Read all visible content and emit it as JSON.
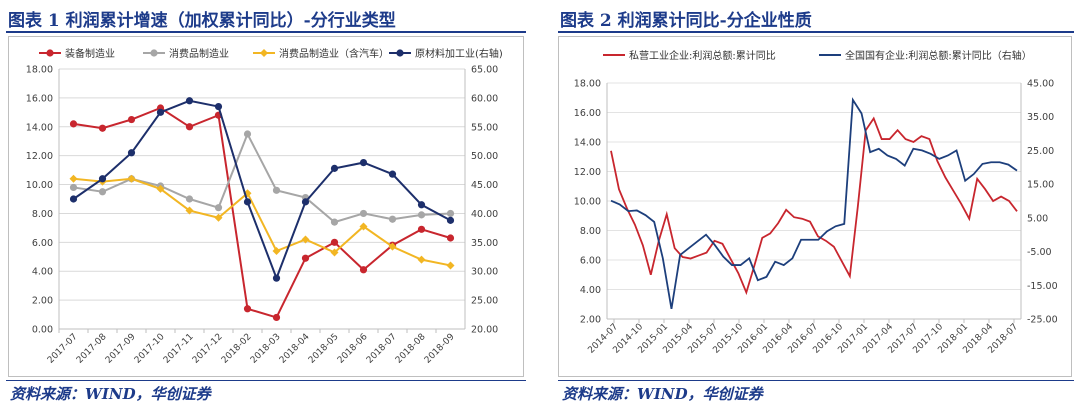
{
  "charts": [
    {
      "title": "图表 1   利润累计增速（加权累计同比）-分行业类型",
      "source": "资料来源：WIND，华创证券",
      "chart_data": {
        "type": "line",
        "categories": [
          "2017-07",
          "2017-08",
          "2017-09",
          "2017-10",
          "2017-11",
          "2017-12",
          "2018-02",
          "2018-03",
          "2018-04",
          "2018-05",
          "2018-06",
          "2018-07",
          "2018-08",
          "2018-09"
        ],
        "left_axis": {
          "ylim": [
            0,
            18
          ],
          "ticks": [
            "0.00",
            "2.00",
            "4.00",
            "6.00",
            "8.00",
            "10.00",
            "12.00",
            "14.00",
            "16.00",
            "18.00"
          ]
        },
        "right_axis": {
          "ylim": [
            20,
            65
          ],
          "ticks": [
            "20.00",
            "25.00",
            "30.00",
            "35.00",
            "40.00",
            "45.00",
            "50.00",
            "55.00",
            "60.00",
            "65.00"
          ]
        },
        "legend_position": "top",
        "series": [
          {
            "name": "装备制造业",
            "axis": "left",
            "color": "#c8262e",
            "marker": "circle",
            "values": [
              14.2,
              13.9,
              14.5,
              15.3,
              14.0,
              14.8,
              1.4,
              0.8,
              4.9,
              6.0,
              4.1,
              5.8,
              6.9,
              6.3
            ]
          },
          {
            "name": "消费品制造业",
            "axis": "left",
            "color": "#a6a6a6",
            "marker": "circle",
            "values": [
              9.8,
              9.5,
              10.4,
              9.9,
              9.0,
              8.4,
              13.5,
              9.6,
              9.1,
              7.4,
              8.0,
              7.6,
              7.9,
              8.0
            ]
          },
          {
            "name": "消费品制造业（含汽车）",
            "axis": "left",
            "color": "#f2b623",
            "marker": "diamond",
            "values": [
              10.4,
              10.2,
              10.4,
              9.7,
              8.2,
              7.7,
              9.4,
              5.4,
              6.2,
              5.3,
              7.1,
              5.7,
              4.8,
              4.4
            ]
          },
          {
            "name": "原材料加工业(右轴)",
            "axis": "right",
            "color": "#1d2f6b",
            "marker": "circle",
            "values": [
              42.5,
              46.0,
              50.5,
              57.5,
              59.5,
              58.5,
              42.0,
              28.8,
              42.0,
              47.8,
              48.8,
              46.8,
              41.5,
              38.8
            ]
          }
        ]
      }
    },
    {
      "title": "图表 2   利润累计同比-分企业性质",
      "source": "资料来源：WIND，华创证券",
      "chart_data": {
        "type": "line",
        "x_tick_labels": [
          "2014-07",
          "2014-10",
          "2015-01",
          "2015-04",
          "2015-07",
          "2015-10",
          "2016-01",
          "2016-04",
          "2016-07",
          "2016-10",
          "2017-01",
          "2017-04",
          "2017-07",
          "2017-10",
          "2018-01",
          "2018-04",
          "2018-07"
        ],
        "left_axis": {
          "ylim": [
            2,
            18
          ],
          "ticks": [
            "2.00",
            "4.00",
            "6.00",
            "8.00",
            "10.00",
            "12.00",
            "14.00",
            "16.00",
            "18.00"
          ]
        },
        "right_axis": {
          "ylim": [
            -25,
            45
          ],
          "ticks": [
            "-25.00",
            "-15.00",
            "-5.00",
            "5.00",
            "15.00",
            "25.00",
            "35.00",
            "45.00"
          ]
        },
        "legend_position": "top",
        "series": [
          {
            "name": "私营工业企业:利润总额:累计同比",
            "axis": "left",
            "color": "#c8262e",
            "values": [
              13.4,
              10.8,
              9.5,
              8.4,
              7.0,
              5.0,
              7.3,
              9.1,
              6.8,
              6.2,
              6.1,
              6.3,
              6.5,
              7.3,
              7.1,
              6.1,
              5.1,
              3.8,
              5.6,
              7.5,
              7.8,
              8.5,
              9.4,
              8.9,
              8.8,
              8.6,
              7.6,
              7.3,
              6.9,
              5.9,
              4.9,
              9.6,
              14.8,
              15.6,
              14.2,
              14.2,
              14.8,
              14.2,
              14.0,
              14.4,
              14.2,
              12.7,
              11.6,
              10.7,
              9.8,
              8.8,
              11.5,
              10.8,
              10.0,
              10.3,
              10.0,
              9.3
            ]
          },
          {
            "name": "全国国有企业:利润总额:累计同比（右轴）",
            "axis": "right",
            "color": "#1d3f7c",
            "values": [
              10.1,
              9.0,
              7.0,
              7.2,
              5.8,
              3.8,
              -7.0,
              -22.0,
              -6.0,
              -4.0,
              -2.0,
              0.0,
              -3.0,
              -6.5,
              -9.0,
              -9.0,
              -7.0,
              -13.5,
              -12.5,
              -8.0,
              -9.0,
              -7.0,
              -1.5,
              -1.5,
              -1.5,
              1.0,
              2.5,
              3.2,
              40.0,
              36.0,
              24.5,
              25.5,
              23.5,
              22.5,
              20.5,
              25.5,
              25.0,
              24.0,
              22.5,
              23.5,
              25.0,
              16.0,
              18.0,
              21.0,
              21.5,
              21.5,
              20.8,
              19.0
            ]
          }
        ]
      }
    }
  ]
}
